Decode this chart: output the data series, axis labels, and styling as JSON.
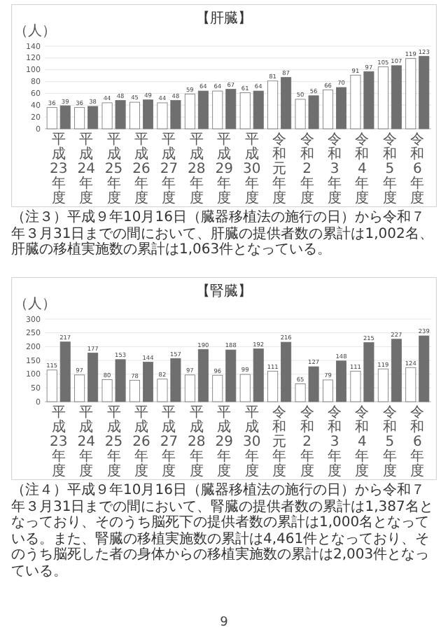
{
  "chart_data": [
    {
      "type": "bar",
      "title": "【肝臓】",
      "ylabel": "（人）",
      "categories": [
        "平成23年度",
        "平成24年度",
        "平成25年度",
        "平成26年度",
        "平成27年度",
        "平成28年度",
        "平成29年度",
        "平成30年度",
        "令和元年度",
        "令和2年度",
        "令和3年度",
        "令和4年度",
        "令和5年度",
        "令和6年度"
      ],
      "series": [
        {
          "color": "#ffffff",
          "values": [
            36,
            36,
            44,
            45,
            44,
            59,
            64,
            61,
            81,
            50,
            66,
            91,
            105,
            119
          ]
        },
        {
          "color": "#6f6f6f",
          "values": [
            39,
            38,
            48,
            49,
            48,
            64,
            67,
            64,
            87,
            56,
            70,
            97,
            107,
            123
          ]
        }
      ],
      "ylim": [
        0,
        140
      ],
      "yticks": [
        0,
        20,
        40,
        60,
        80,
        100,
        120,
        140
      ],
      "grid": "y",
      "data_labels": true,
      "annotations": [
        "（注３）平成９年10月16日（臓器移植法の施行の日）から令和７年３月31日までの間において、肝臓の提供者数の累計は1,002名、肝臓の移植実施数の累計は1,063件となっている。"
      ]
    },
    {
      "type": "bar",
      "title": "【腎臓】",
      "ylabel": "（人）",
      "categories": [
        "平成23年度",
        "平成24年度",
        "平成25年度",
        "平成26年度",
        "平成27年度",
        "平成28年度",
        "平成29年度",
        "平成30年度",
        "令和元年度",
        "令和2年度",
        "令和3年度",
        "令和4年度",
        "令和5年度",
        "令和6年度"
      ],
      "series": [
        {
          "color": "#ffffff",
          "values": [
            115,
            97,
            80,
            78,
            82,
            97,
            96,
            99,
            111,
            65,
            79,
            111,
            119,
            124
          ]
        },
        {
          "color": "#6f6f6f",
          "values": [
            217,
            177,
            153,
            144,
            157,
            190,
            188,
            192,
            216,
            127,
            148,
            215,
            227,
            239
          ]
        }
      ],
      "ylim": [
        0,
        300
      ],
      "yticks": [
        0,
        50,
        100,
        150,
        200,
        250,
        300
      ],
      "grid": "y",
      "data_labels": true,
      "annotations": [
        "（注４）平成９年10月16日（臓器移植法の施行の日）から令和７年３月31日までの間において、腎臓の提供者数の累計は1,387名となっており、そのうち脳死下の提供者数の累計は1,000名となっている。また、腎臓の移植実施数の累計は4,461件となっており、そのうち脳死した者の身体からの移植実施数の累計は2,003件となっている。",
        "9"
      ]
    }
  ]
}
